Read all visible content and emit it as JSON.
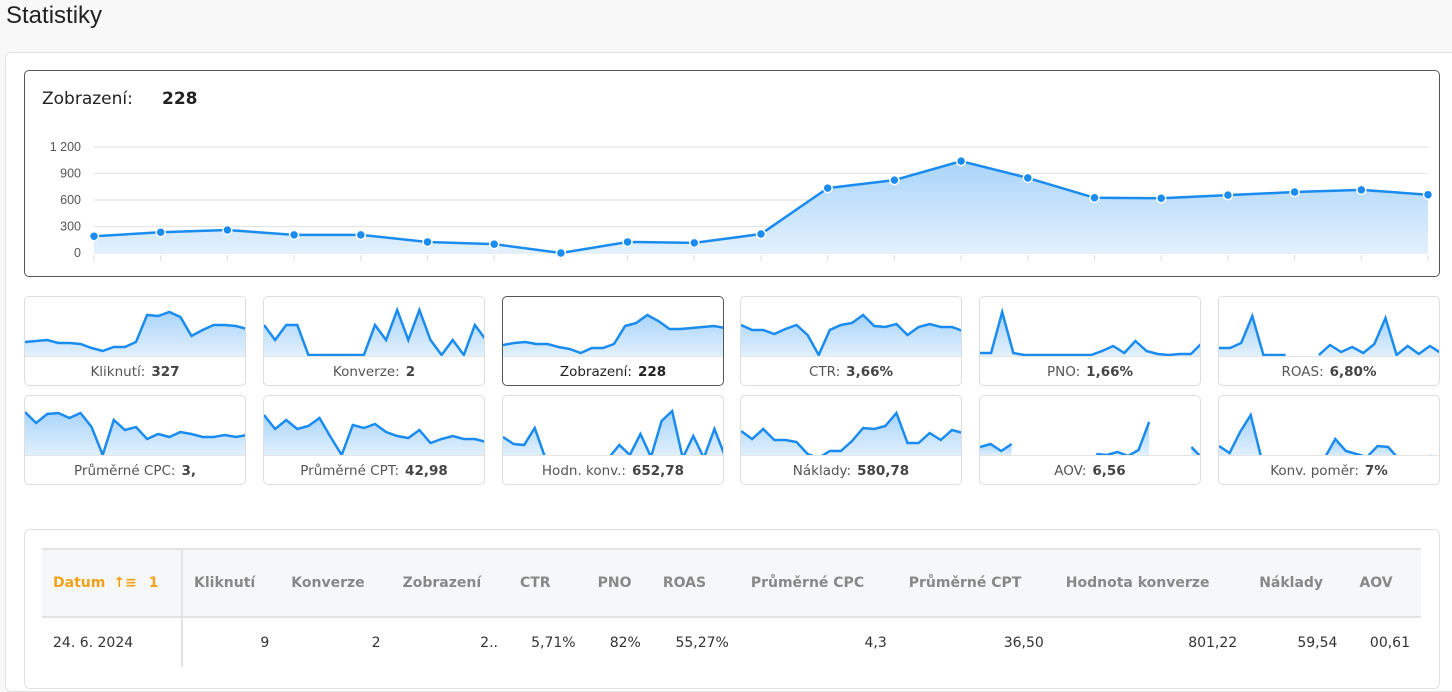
{
  "page": {
    "title": "Statistiky"
  },
  "main_chart": {
    "label": "Zobrazení:",
    "value": "228",
    "y_ticks": [
      "1 200",
      "900",
      "600",
      "300",
      "0"
    ]
  },
  "chart_data": {
    "type": "area",
    "title": "Zobrazení",
    "xlabel": "",
    "ylabel": "",
    "ylim": [
      0,
      1200
    ],
    "y_ticks": [
      0,
      300,
      600,
      900,
      1200
    ],
    "grid": true,
    "x": [
      1,
      2,
      3,
      4,
      5,
      6,
      7,
      8,
      9,
      10,
      11,
      12,
      13,
      14,
      15,
      16,
      17,
      18,
      19,
      20,
      21
    ],
    "series": [
      {
        "name": "Zobrazení",
        "values": [
          190,
          235,
          260,
          205,
          205,
          125,
          100,
          0,
          125,
          115,
          215,
          735,
          825,
          1040,
          850,
          625,
          620,
          655,
          690,
          715,
          660
        ]
      }
    ]
  },
  "sparklines": [
    {
      "label": "Kliknutí:",
      "value": "327",
      "active": false,
      "points": [
        45,
        44,
        43,
        46,
        46,
        47,
        51,
        54,
        50,
        50,
        45,
        18,
        19,
        15,
        20,
        39,
        33,
        28,
        28,
        29,
        32
      ]
    },
    {
      "label": "Konverze:",
      "value": "2",
      "active": false,
      "points": [
        28,
        43,
        28,
        28,
        58,
        58,
        58,
        58,
        58,
        58,
        28,
        43,
        13,
        43,
        13,
        43,
        58,
        43,
        58,
        28,
        43
      ]
    },
    {
      "label": "Zobrazení:",
      "value": "228",
      "active": true,
      "points": [
        48,
        46,
        45,
        47,
        47,
        50,
        52,
        56,
        51,
        51,
        47,
        29,
        26,
        18,
        24,
        32,
        32,
        31,
        30,
        29,
        31
      ]
    },
    {
      "label": "CTR:",
      "value": "3,66%",
      "active": false,
      "points": [
        28,
        33,
        33,
        37,
        32,
        28,
        38,
        58,
        33,
        28,
        26,
        18,
        29,
        30,
        27,
        38,
        30,
        27,
        30,
        30,
        34
      ]
    },
    {
      "label": "PNO:",
      "value": "1,66%",
      "active": false,
      "points": [
        56,
        56,
        15,
        56,
        58,
        58,
        58,
        58,
        58,
        58,
        58,
        54,
        49,
        56,
        44,
        54,
        57,
        58,
        57,
        57,
        46
      ]
    },
    {
      "label": "ROAS:",
      "value": "6,80%",
      "active": false,
      "points": [
        51,
        51,
        46,
        19,
        58,
        58,
        58,
        null,
        null,
        58,
        48,
        55,
        50,
        56,
        47,
        21,
        58,
        49,
        57,
        49,
        56
      ]
    }
  ],
  "sparklines_row2": [
    {
      "label": "Průměrné CPC:",
      "value": "3,",
      "active": false,
      "points": [
        16,
        27,
        18,
        17,
        22,
        17,
        31,
        59,
        24,
        34,
        31,
        43,
        38,
        41,
        36,
        38,
        41,
        41,
        39,
        41,
        39
      ]
    },
    {
      "label": "Průměrné CPT:",
      "value": "42,98",
      "active": false,
      "points": [
        19,
        33,
        24,
        33,
        30,
        22,
        41,
        59,
        29,
        32,
        28,
        36,
        40,
        42,
        34,
        47,
        43,
        40,
        43,
        43,
        46
      ]
    },
    {
      "label": "Hodn. konv.:",
      "value": "652,78",
      "active": false,
      "points": [
        41,
        48,
        49,
        32,
        62,
        62,
        62,
        62,
        62,
        62,
        62,
        49,
        59,
        38,
        61,
        25,
        15,
        62,
        40,
        62,
        33,
        60
      ]
    },
    {
      "label": "Náklady:",
      "value": "580,78",
      "active": false,
      "points": [
        35,
        43,
        33,
        44,
        44,
        46,
        58,
        62,
        55,
        55,
        45,
        32,
        33,
        30,
        17,
        47,
        47,
        37,
        44,
        34,
        37
      ]
    },
    {
      "label": "AOV:",
      "value": "6,56",
      "active": false,
      "points": [
        51,
        48,
        55,
        48,
        null,
        null,
        null,
        null,
        null,
        null,
        null,
        58,
        59,
        56,
        60,
        54,
        26,
        null,
        null,
        null,
        51,
        62
      ]
    },
    {
      "label": "Konv. poměr:",
      "value": "7%",
      "active": false,
      "points": [
        50,
        57,
        36,
        19,
        62,
        62,
        62,
        null,
        null,
        62,
        62,
        43,
        55,
        58,
        61,
        50,
        51,
        63,
        61,
        62,
        60,
        61
      ]
    }
  ],
  "table": {
    "sort_indicator": "1",
    "columns": [
      "Datum",
      "Kliknutí",
      "Konverze",
      "Zobrazení",
      "CTR",
      "PNO",
      "ROAS",
      "Průměrné CPC",
      "Průměrné CPT",
      "Hodnota konverze",
      "Náklady",
      "AOV"
    ],
    "rows": [
      [
        "24. 6. 2024",
        "9",
        "2",
        "2..",
        "5,71%",
        "82%",
        "55,27%",
        "4,3",
        "36,50",
        "801,22",
        "59,54",
        "00,61"
      ]
    ]
  },
  "colors": {
    "accent": "#1a8cf0",
    "fill_top": "#a9d4fa",
    "fill_bottom": "#e3f1fd",
    "sort_active": "#f0a21a"
  }
}
